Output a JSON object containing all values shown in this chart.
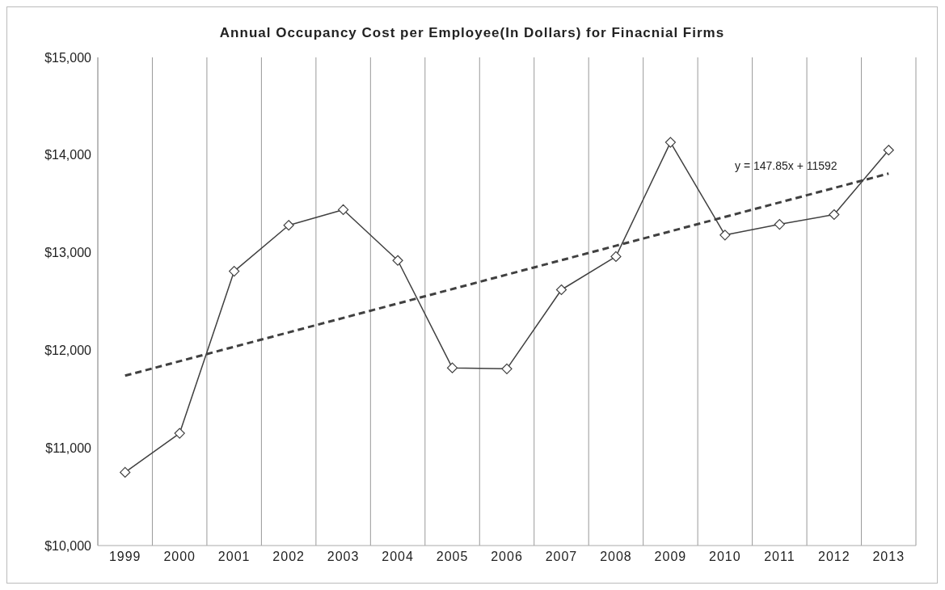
{
  "chart_data": {
    "type": "line",
    "title": "Annual Occupancy Cost per Employee(In Dollars) for Finacnial Firms",
    "categories": [
      "1999",
      "2000",
      "2001",
      "2002",
      "2003",
      "2004",
      "2005",
      "2006",
      "2007",
      "2008",
      "2009",
      "2010",
      "2011",
      "2012",
      "2013"
    ],
    "series": [
      {
        "color": "#404040",
        "marker": "diamond",
        "line_style": "solid",
        "values": [
          10750,
          11150,
          12810,
          13280,
          13440,
          12920,
          11820,
          11810,
          12620,
          12960,
          14130,
          13180,
          13290,
          13390,
          14050
        ]
      },
      {
        "type": "line",
        "color": "#404040",
        "marker": "none",
        "line_style": "dashed",
        "values": [
          11740,
          null,
          null,
          null,
          null,
          null,
          null,
          null,
          null,
          null,
          null,
          null,
          null,
          null,
          13810
        ]
      }
    ],
    "ylim": [
      10000,
      15000
    ],
    "yticks": [
      {
        "value": 10000,
        "label": "$10,000"
      },
      {
        "value": 11000,
        "label": "$11,000"
      },
      {
        "value": 12000,
        "label": "$12,000"
      },
      {
        "value": 13000,
        "label": "$13,000"
      },
      {
        "value": 14000,
        "label": "$14,000"
      },
      {
        "value": 15000,
        "label": "$15,000"
      }
    ],
    "grid": "x",
    "annotations": [
      "y = 147.85x + 11592"
    ]
  }
}
